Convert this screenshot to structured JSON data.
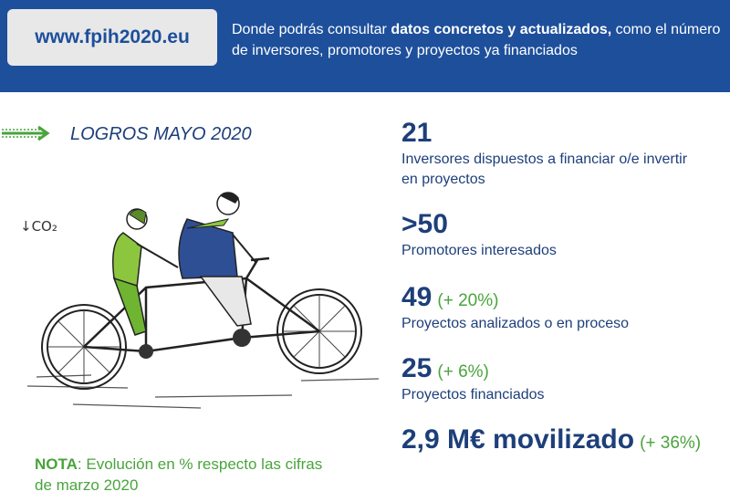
{
  "header": {
    "url": "www.fpih2020.eu",
    "desc_before": "Donde podrás consultar ",
    "desc_bold": "datos concretos y actualizados,",
    "desc_after": " como el número de inversores, promotores y proyectos ya financiados"
  },
  "section_title": "LOGROS MAYO 2020",
  "illustration": {
    "co2_label": "↓CO₂"
  },
  "stats": [
    {
      "value": "21",
      "change": "",
      "label": "Inversores dispuestos a financiar o/e invertir en proyectos"
    },
    {
      "value": ">50",
      "change": "",
      "label": "Promotores interesados"
    },
    {
      "value": "49",
      "change": "(+ 20%)",
      "label": "Proyectos analizados o en proceso"
    },
    {
      "value": "25",
      "change": "(+ 6%)",
      "label": "Proyectos financiados"
    },
    {
      "value": "2,9 M€ movilizado",
      "change": "(+ 36%)",
      "label": ""
    }
  ],
  "note": {
    "bold": "NOTA",
    "text": ": Evolución en % respecto las cifras de marzo 2020"
  },
  "colors": {
    "brand_blue": "#1d4f9b",
    "accent_green": "#49a43c",
    "dark_blue": "#1d3f7a"
  }
}
